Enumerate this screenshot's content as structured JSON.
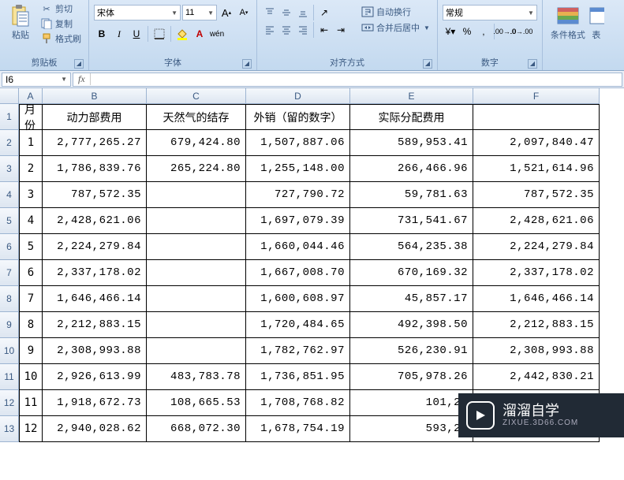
{
  "ribbon": {
    "clipboard": {
      "paste": "粘贴",
      "cut": "剪切",
      "copy": "复制",
      "format_painter": "格式刷",
      "label": "剪贴板"
    },
    "font": {
      "name": "宋体",
      "size": "11",
      "bold": "B",
      "italic": "I",
      "underline": "U",
      "label": "字体"
    },
    "align": {
      "wrap": "自动换行",
      "merge": "合并后居中",
      "label": "对齐方式"
    },
    "number": {
      "format": "常规",
      "label": "数字"
    },
    "styles": {
      "cond_format": "条件格式",
      "table_format": "表"
    }
  },
  "namebox": "I6",
  "columns": [
    "A",
    "B",
    "C",
    "D",
    "E",
    "F"
  ],
  "headers": {
    "A": "月份",
    "B": "动力部费用",
    "C": "天然气的结存",
    "D": "外销（留的数字）",
    "E": "实际分配费用",
    "F": ""
  },
  "rows": [
    {
      "n": "1",
      "A": "1",
      "B": "2,777,265.27",
      "C": "679,424.80",
      "D": "1,507,887.06",
      "E": "589,953.41",
      "F": "2,097,840.47"
    },
    {
      "n": "2",
      "A": "2",
      "B": "1,786,839.76",
      "C": "265,224.80",
      "D": "1,255,148.00",
      "E": "266,466.96",
      "F": "1,521,614.96"
    },
    {
      "n": "3",
      "A": "3",
      "B": "787,572.35",
      "C": "",
      "D": "727,790.72",
      "E": "59,781.63",
      "F": "787,572.35"
    },
    {
      "n": "4",
      "A": "4",
      "B": "2,428,621.06",
      "C": "",
      "D": "1,697,079.39",
      "E": "731,541.67",
      "F": "2,428,621.06"
    },
    {
      "n": "5",
      "A": "5",
      "B": "2,224,279.84",
      "C": "",
      "D": "1,660,044.46",
      "E": "564,235.38",
      "F": "2,224,279.84"
    },
    {
      "n": "6",
      "A": "6",
      "B": "2,337,178.02",
      "C": "",
      "D": "1,667,008.70",
      "E": "670,169.32",
      "F": "2,337,178.02"
    },
    {
      "n": "7",
      "A": "7",
      "B": "1,646,466.14",
      "C": "",
      "D": "1,600,608.97",
      "E": "45,857.17",
      "F": "1,646,466.14"
    },
    {
      "n": "8",
      "A": "8",
      "B": "2,212,883.15",
      "C": "",
      "D": "1,720,484.65",
      "E": "492,398.50",
      "F": "2,212,883.15"
    },
    {
      "n": "9",
      "A": "9",
      "B": "2,308,993.88",
      "C": "",
      "D": "1,782,762.97",
      "E": "526,230.91",
      "F": "2,308,993.88"
    },
    {
      "n": "10",
      "A": "10",
      "B": "2,926,613.99",
      "C": "483,783.78",
      "D": "1,736,851.95",
      "E": "705,978.26",
      "F": "2,442,830.21"
    },
    {
      "n": "11",
      "A": "11",
      "B": "1,918,672.73",
      "C": "108,665.53",
      "D": "1,708,768.82",
      "E": "101,23",
      "F": ""
    },
    {
      "n": "12",
      "A": "12",
      "B": "2,940,028.62",
      "C": "668,072.30",
      "D": "1,678,754.19",
      "E": "593,20",
      "F": "2"
    }
  ],
  "watermark": {
    "title": "溜溜自学",
    "sub": "ZIXUE.3D66.COM"
  }
}
